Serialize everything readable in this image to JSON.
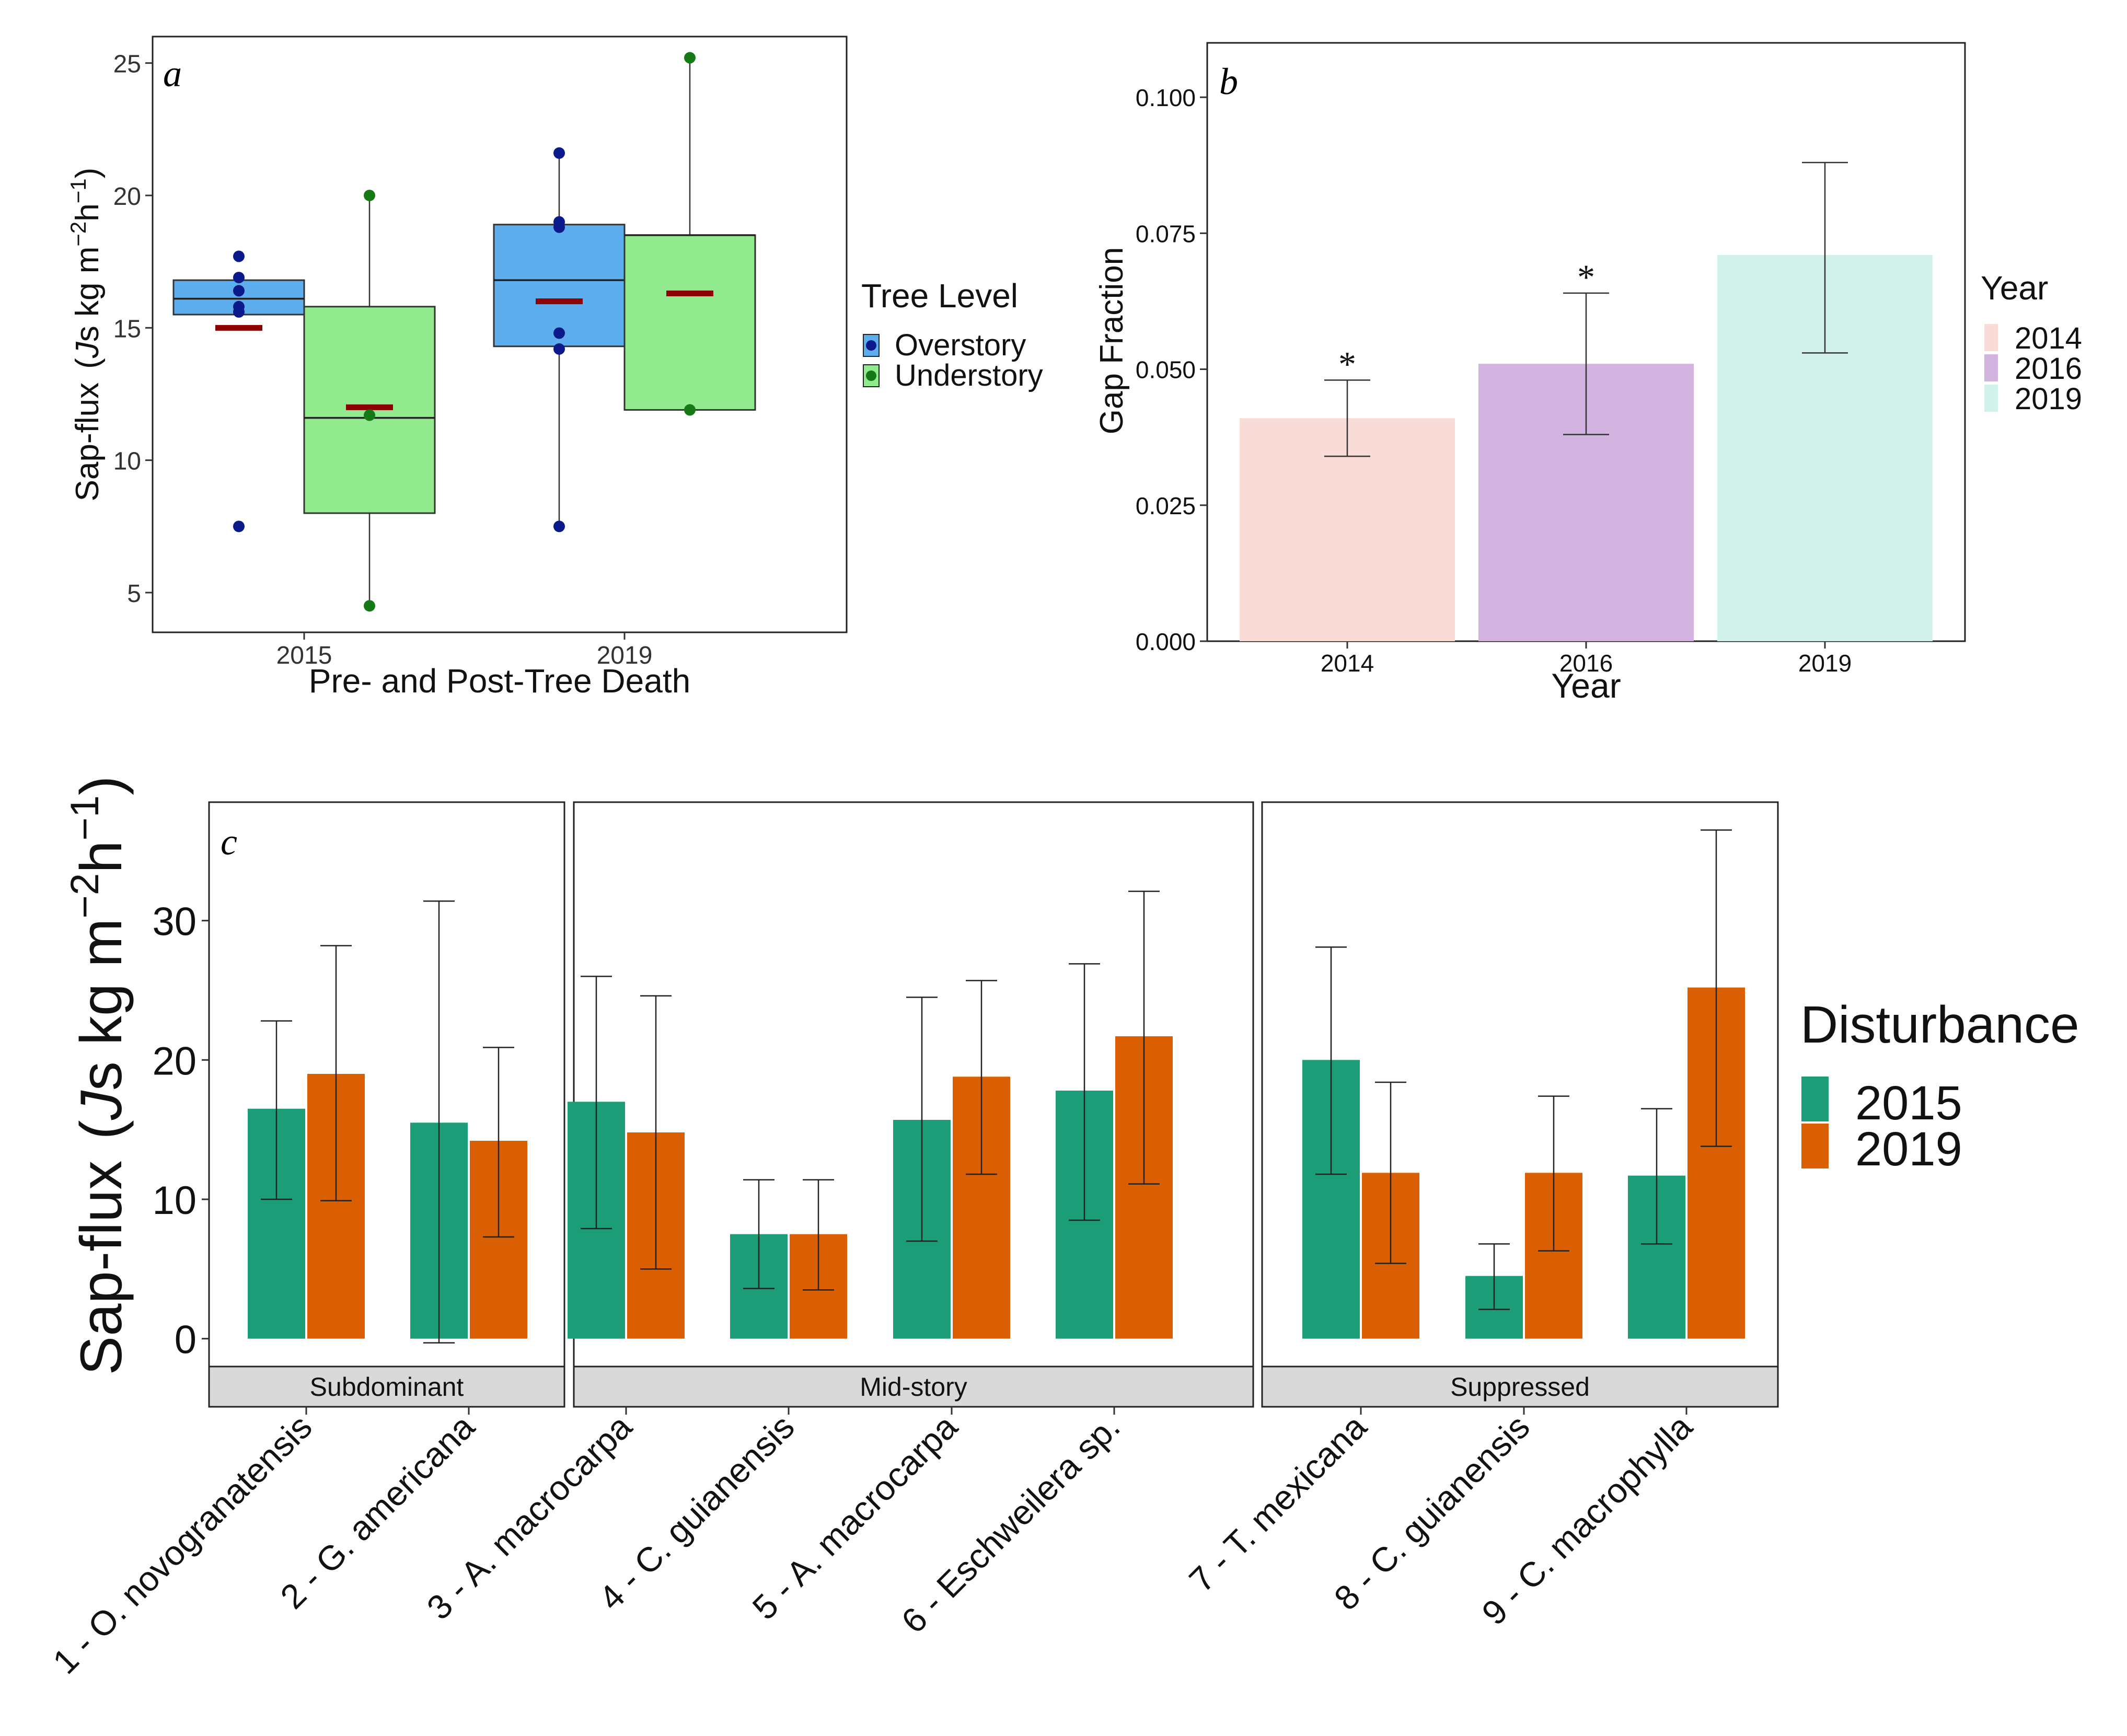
{
  "panel_a": {
    "label": "a",
    "xlabel": "Pre- and Post-Tree Death",
    "ylabel_main": "Sap-flux",
    "ylabel_paren_open": "(",
    "ylabel_italic": "J",
    "ylabel_unit": "s kg m",
    "ylabel_exp1": "−2",
    "ylabel_h": "h",
    "ylabel_exp2": "−1",
    "ylabel_paren_close": ")",
    "legend_title": "Tree Level",
    "legend_items": [
      "Overstory",
      "Understory"
    ]
  },
  "panel_b": {
    "label": "b",
    "xlabel": "Year",
    "ylabel": "Gap Fraction",
    "legend_title": "Year",
    "significance": "*"
  },
  "panel_c": {
    "label": "c",
    "ylabel_main": "Sap-flux",
    "ylabel_paren_open": "(",
    "ylabel_italic": "J",
    "ylabel_unit": "s kg m",
    "ylabel_exp1": "−2",
    "ylabel_h": "h",
    "ylabel_exp2": "−1",
    "ylabel_paren_close": ")",
    "legend_title": "Disturbance"
  },
  "chart_data": [
    {
      "id": "a",
      "type": "box",
      "title": "",
      "xlabel": "Pre- and Post-Tree Death",
      "ylabel": "Sap-flux (Js kg m−2h−1)",
      "categories": [
        "2015",
        "2019"
      ],
      "yticks": [
        5,
        10,
        15,
        20,
        25
      ],
      "ylim": [
        3.5,
        26
      ],
      "legend_position": "right",
      "groups": [
        {
          "category": "2015",
          "level": "Overstory",
          "color": "#5eaeee",
          "q1": 15.5,
          "median": 16.1,
          "q3": 16.8,
          "whisker_low": 15.5,
          "whisker_high": 16.8,
          "mean": 15.0,
          "points": [
            17.7,
            16.9,
            16.4,
            15.6,
            15.8,
            7.5
          ]
        },
        {
          "category": "2015",
          "level": "Understory",
          "color": "#92ea8e",
          "q1": 8.0,
          "median": 11.6,
          "q3": 15.8,
          "whisker_low": 4.5,
          "whisker_high": 20.0,
          "mean": 12.0,
          "points": [
            20.0,
            11.7,
            4.5
          ]
        },
        {
          "category": "2019",
          "level": "Overstory",
          "color": "#5eaeee",
          "q1": 14.3,
          "median": 16.8,
          "q3": 18.9,
          "whisker_low": 7.5,
          "whisker_high": 21.6,
          "mean": 16.0,
          "points": [
            21.6,
            19.0,
            18.8,
            14.8,
            14.2,
            7.5
          ]
        },
        {
          "category": "2019",
          "level": "Understory",
          "color": "#92ea8e",
          "q1": 11.9,
          "median": 18.5,
          "q3": 18.5,
          "whisker_low": 11.9,
          "whisker_high": 25.2,
          "mean": 16.3,
          "points": [
            25.2,
            11.9
          ]
        }
      ],
      "colors": {
        "overstory_fill": "#5eaeee",
        "overstory_point": "#0a1a8a",
        "understory_fill": "#92ea8e",
        "understory_point": "#157a15",
        "mean": "#8b0000"
      }
    },
    {
      "id": "b",
      "type": "bar",
      "xlabel": "Year",
      "ylabel": "Gap Fraction",
      "categories": [
        "2014",
        "2016",
        "2019"
      ],
      "values": [
        0.041,
        0.051,
        0.071
      ],
      "error_low": [
        0.034,
        0.038,
        0.053
      ],
      "error_high": [
        0.048,
        0.064,
        0.088
      ],
      "significant": [
        true,
        true,
        false
      ],
      "yticks": [
        "0.000",
        "0.025",
        "0.050",
        "0.075",
        "0.100"
      ],
      "ylim": [
        0,
        0.11
      ],
      "colors": [
        "#f9dbd8",
        "#d3b3df",
        "#d1f2ea"
      ],
      "legend_title": "Year",
      "legend_position": "right"
    },
    {
      "id": "c",
      "type": "bar",
      "ylabel": "Sap-flux (Js kg m−2h−1)",
      "categories": [
        "1 - O. novogranatensis",
        "2 - G. americana",
        "3 - A. macrocarpa",
        "4 - C. guianensis",
        "5 - A. macrocarpa",
        "6 - Eschweilera sp.",
        "7 - T. mexicana",
        "8 - C. guianensis",
        "9 - C. macrophylla"
      ],
      "facets": [
        {
          "label": "Subdominant",
          "categories": [
            0,
            1
          ]
        },
        {
          "label": "Mid-story",
          "categories": [
            2,
            3,
            4,
            5
          ]
        },
        {
          "label": "Suppressed",
          "categories": [
            6,
            7,
            8
          ]
        }
      ],
      "series": [
        {
          "name": "2015",
          "color": "#1b9e77",
          "values": [
            16.5,
            15.5,
            17.0,
            7.5,
            15.7,
            17.8,
            20.0,
            4.5,
            11.7
          ],
          "error_low": [
            10.0,
            -0.3,
            7.9,
            3.6,
            7.0,
            8.5,
            11.8,
            2.1,
            6.8
          ],
          "error_high": [
            22.8,
            31.4,
            26.0,
            11.4,
            24.5,
            26.9,
            28.1,
            6.8,
            16.5
          ]
        },
        {
          "name": "2019",
          "color": "#d95f02",
          "values": [
            19.0,
            14.2,
            14.8,
            7.5,
            18.8,
            21.7,
            11.9,
            11.9,
            25.2
          ],
          "error_low": [
            9.9,
            7.3,
            5.0,
            3.5,
            11.8,
            11.1,
            5.4,
            6.3,
            13.8
          ],
          "error_high": [
            28.2,
            20.9,
            24.6,
            11.4,
            25.7,
            32.1,
            18.4,
            17.4,
            36.5
          ]
        }
      ],
      "yticks": [
        0,
        10,
        20,
        30
      ],
      "ylim": [
        -2,
        38.5
      ],
      "legend_title": "Disturbance",
      "legend_position": "right"
    }
  ]
}
